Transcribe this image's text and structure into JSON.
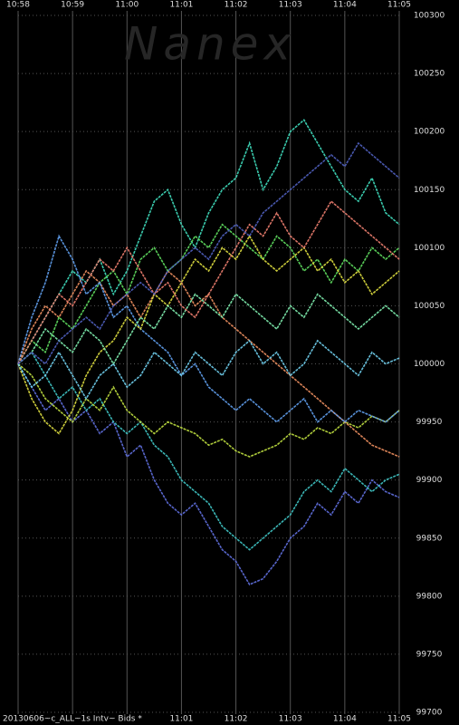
{
  "chart_data": {
    "type": "line",
    "watermark": "Nanex",
    "footer": "20130606~c_ALL~1s Intv~ Bids *",
    "x": [
      658,
      658.25,
      658.5,
      658.75,
      659,
      659.25,
      659.5,
      659.75,
      660,
      660.25,
      660.5,
      660.75,
      661,
      661.25,
      661.5,
      661.75,
      662,
      662.25,
      662.5,
      662.75,
      663,
      663.25,
      663.5,
      663.75,
      664,
      664.25,
      664.5,
      664.75,
      665
    ],
    "xlim": [
      658,
      665
    ],
    "xticks": [
      {
        "value": 658,
        "label": "10:58"
      },
      {
        "value": 659,
        "label": "10:59"
      },
      {
        "value": 660,
        "label": "11:00"
      },
      {
        "value": 661,
        "label": "11:01"
      },
      {
        "value": 662,
        "label": "11:02"
      },
      {
        "value": 663,
        "label": "11:03"
      },
      {
        "value": 664,
        "label": "11:04"
      },
      {
        "value": 665,
        "label": "11:05"
      }
    ],
    "xticks_bottom": [
      {
        "value": 661,
        "label": "11:01"
      },
      {
        "value": 662,
        "label": "11:02"
      },
      {
        "value": 663,
        "label": "11:03"
      },
      {
        "value": 664,
        "label": "11:04"
      },
      {
        "value": 665,
        "label": "11:05"
      }
    ],
    "ylim": [
      99700,
      100300
    ],
    "yticks": [
      99700,
      99750,
      99800,
      99850,
      99900,
      99950,
      100000,
      100050,
      100100,
      100150,
      100200,
      100250,
      100300
    ],
    "grid": true,
    "series": [
      {
        "color": "#40e0c0",
        "values": [
          100000,
          100020,
          100040,
          100060,
          100080,
          100070,
          100090,
          100060,
          100080,
          100110,
          100140,
          100150,
          100120,
          100100,
          100130,
          100150,
          100160,
          100190,
          100150,
          100170,
          100200,
          100210,
          100190,
          100170,
          100150,
          100140,
          100160,
          100130,
          100120
        ]
      },
      {
        "color": "#6070e0",
        "values": [
          100000,
          99980,
          99960,
          99970,
          99950,
          99960,
          99940,
          99950,
          99920,
          99930,
          99900,
          99880,
          99870,
          99880,
          99860,
          99840,
          99830,
          99810,
          99815,
          99830,
          99850,
          99860,
          99880,
          99870,
          99890,
          99880,
          99900,
          99890,
          99885
        ]
      },
      {
        "color": "#40c8c8",
        "values": [
          100000,
          100010,
          99990,
          99970,
          99980,
          99960,
          99970,
          99950,
          99940,
          99950,
          99930,
          99920,
          99900,
          99890,
          99880,
          99860,
          99850,
          99840,
          99850,
          99860,
          99870,
          99890,
          99900,
          99890,
          99910,
          99900,
          99890,
          99900,
          99905
        ]
      },
      {
        "color": "#c0e040",
        "values": [
          100000,
          99990,
          99970,
          99960,
          99950,
          99970,
          99960,
          99980,
          99960,
          99950,
          99940,
          99950,
          99945,
          99940,
          99930,
          99935,
          99925,
          99920,
          99925,
          99930,
          99940,
          99935,
          99945,
          99940,
          99950,
          99945,
          99955,
          99950,
          99960
        ]
      },
      {
        "color": "#f09060",
        "values": [
          100000,
          100030,
          100050,
          100040,
          100060,
          100080,
          100070,
          100050,
          100060,
          100040,
          100060,
          100080,
          100070,
          100050,
          100060,
          100040,
          100030,
          100020,
          100010,
          100000,
          99990,
          99980,
          99970,
          99960,
          99950,
          99940,
          99930,
          99925,
          99920
        ]
      },
      {
        "color": "#60e060",
        "values": [
          100000,
          100020,
          100010,
          100040,
          100030,
          100050,
          100070,
          100080,
          100060,
          100090,
          100100,
          100080,
          100090,
          100110,
          100100,
          100120,
          100110,
          100100,
          100090,
          100110,
          100100,
          100080,
          100090,
          100070,
          100090,
          100080,
          100100,
          100090,
          100100
        ]
      },
      {
        "color": "#60a0f0",
        "values": [
          100000,
          100040,
          100070,
          100110,
          100090,
          100060,
          100070,
          100040,
          100050,
          100030,
          100020,
          100010,
          99990,
          100000,
          99980,
          99970,
          99960,
          99970,
          99960,
          99950,
          99960,
          99970,
          99950,
          99960,
          99950,
          99960,
          99955,
          99950,
          99960
        ]
      },
      {
        "color": "#e0e040",
        "values": [
          100000,
          99970,
          99950,
          99940,
          99960,
          99990,
          100010,
          100020,
          100040,
          100030,
          100060,
          100050,
          100070,
          100090,
          100080,
          100100,
          100090,
          100110,
          100090,
          100080,
          100090,
          100100,
          100080,
          100090,
          100070,
          100080,
          100060,
          100070,
          100080
        ]
      },
      {
        "color": "#80f0b0",
        "values": [
          100000,
          100010,
          100030,
          100020,
          100010,
          100030,
          100020,
          100000,
          100020,
          100040,
          100030,
          100050,
          100040,
          100060,
          100050,
          100040,
          100060,
          100050,
          100040,
          100030,
          100050,
          100040,
          100060,
          100050,
          100040,
          100030,
          100040,
          100050,
          100040
        ]
      },
      {
        "color": "#f08070",
        "values": [
          100000,
          100020,
          100040,
          100060,
          100050,
          100070,
          100090,
          100080,
          100100,
          100080,
          100060,
          100070,
          100050,
          100040,
          100060,
          100080,
          100100,
          100120,
          100110,
          100130,
          100110,
          100100,
          100120,
          100140,
          100130,
          100120,
          100110,
          100100,
          100090
        ]
      },
      {
        "color": "#70d0f0",
        "values": [
          100000,
          99980,
          99990,
          100010,
          99990,
          99970,
          99990,
          100000,
          99980,
          99990,
          100010,
          100000,
          99990,
          100010,
          100000,
          99990,
          100010,
          100020,
          100000,
          100010,
          99990,
          100000,
          100020,
          100010,
          100000,
          99990,
          100010,
          100000,
          100005
        ]
      },
      {
        "color": "#5060c0",
        "values": [
          100000,
          100010,
          100000,
          100020,
          100030,
          100040,
          100030,
          100050,
          100060,
          100070,
          100060,
          100080,
          100090,
          100100,
          100090,
          100110,
          100120,
          100110,
          100130,
          100140,
          100150,
          100160,
          100170,
          100180,
          100170,
          100190,
          100180,
          100170,
          100160
        ]
      }
    ]
  }
}
